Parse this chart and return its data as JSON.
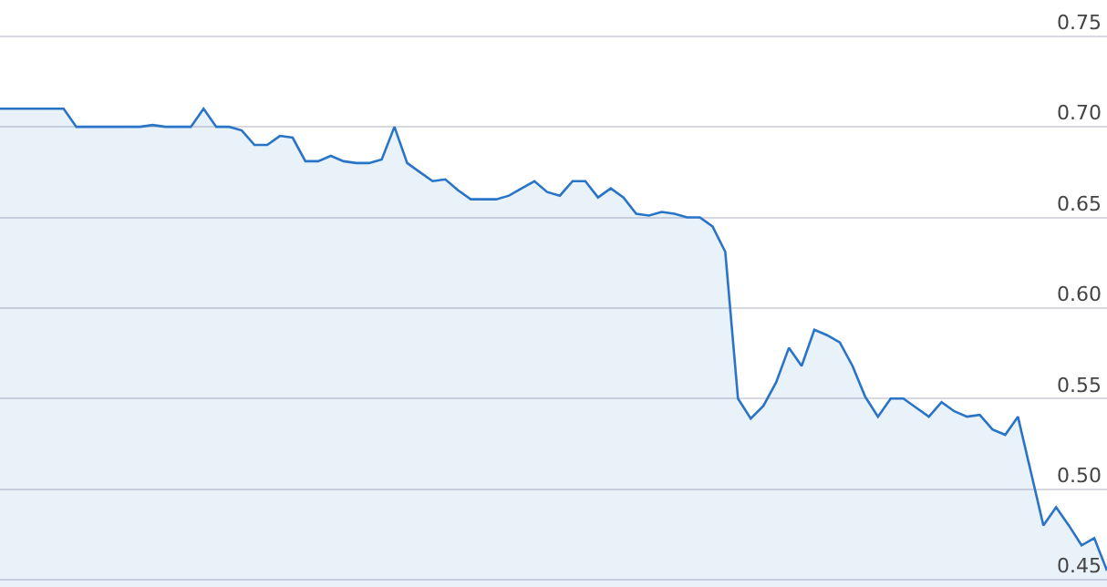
{
  "chart_data": {
    "type": "area",
    "categories": [
      null,
      null,
      null,
      null,
      null,
      null,
      null,
      null,
      null,
      null,
      null,
      null,
      null,
      null,
      null,
      null,
      null,
      null,
      null,
      null,
      null,
      null,
      null,
      null,
      null,
      null,
      null,
      null,
      null,
      null,
      null,
      null,
      null,
      null,
      null,
      null,
      null,
      null,
      null,
      null,
      null,
      null,
      null,
      null,
      null,
      null,
      null,
      null,
      null,
      null,
      null,
      null,
      null,
      null,
      null,
      null,
      null,
      null,
      null,
      null,
      null,
      null,
      null,
      null,
      null,
      null,
      null,
      null,
      null,
      null,
      null,
      null,
      null,
      null,
      null,
      null,
      null,
      null,
      null,
      null,
      null,
      null,
      null,
      null,
      null,
      null,
      null,
      null
    ],
    "series": [
      {
        "color": "#2a74c8",
        "values": [
          0.71,
          0.71,
          0.71,
          0.71,
          0.71,
          0.71,
          0.7,
          0.7,
          0.7,
          0.7,
          0.7,
          0.7,
          0.701,
          0.7,
          0.7,
          0.7,
          0.71,
          0.7,
          0.7,
          0.698,
          0.69,
          0.69,
          0.695,
          0.694,
          0.681,
          0.681,
          0.684,
          0.681,
          0.68,
          0.68,
          0.682,
          0.7,
          0.68,
          0.675,
          0.67,
          0.671,
          0.665,
          0.66,
          0.66,
          0.66,
          0.662,
          0.666,
          0.67,
          0.664,
          0.662,
          0.67,
          0.67,
          0.661,
          0.666,
          0.661,
          0.652,
          0.651,
          0.653,
          0.652,
          0.65,
          0.65,
          0.645,
          0.631,
          0.55,
          0.539,
          0.546,
          0.559,
          0.578,
          0.568,
          0.588,
          0.585,
          0.581,
          0.568,
          0.551,
          0.54,
          0.55,
          0.55,
          0.545,
          0.54,
          0.548,
          0.543,
          0.54,
          0.541,
          0.533,
          0.53,
          0.54,
          0.51,
          0.48,
          0.49,
          0.48,
          0.469,
          0.473,
          0.455
        ]
      }
    ],
    "ylim": [
      0.446,
      0.77
    ],
    "yticks": [
      {
        "value": 0.45,
        "label": "0.45"
      },
      {
        "value": 0.5,
        "label": "0.50"
      },
      {
        "value": 0.55,
        "label": "0.55"
      },
      {
        "value": 0.6,
        "label": "0.60"
      },
      {
        "value": 0.65,
        "label": "0.65"
      },
      {
        "value": 0.7,
        "label": "0.70"
      },
      {
        "value": 0.75,
        "label": "0.75"
      }
    ],
    "grid": "y",
    "legend": false,
    "marker": "none",
    "line_style": "solid"
  }
}
